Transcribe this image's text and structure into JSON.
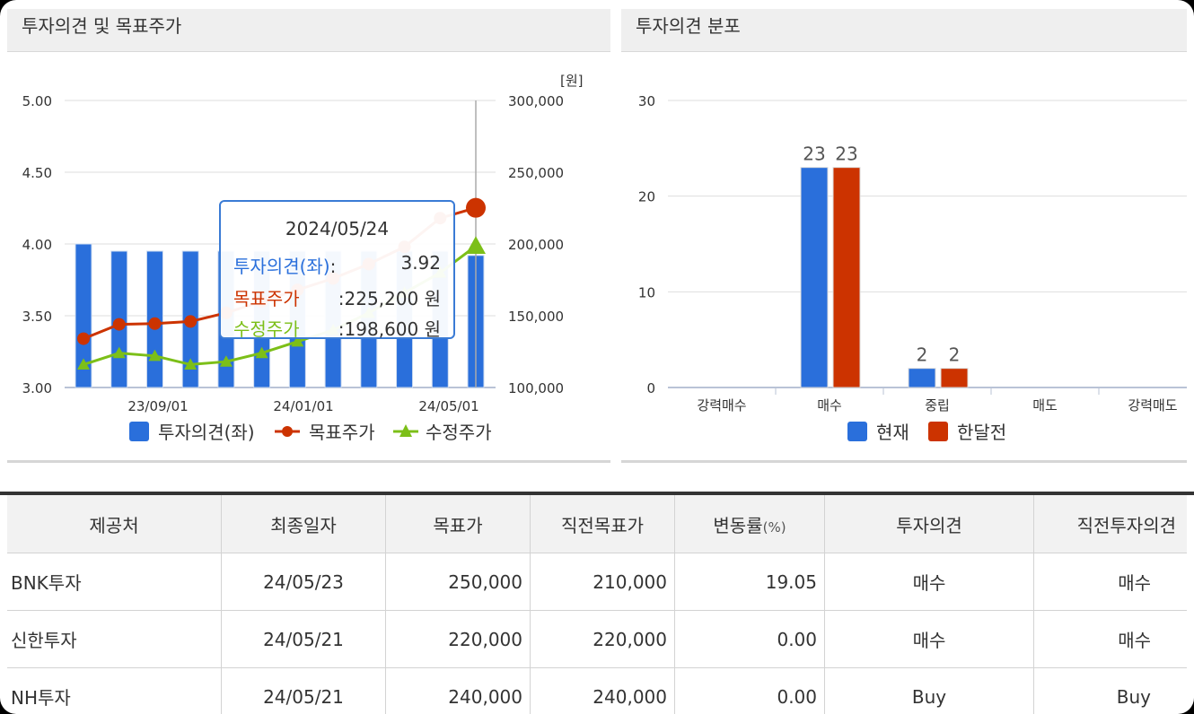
{
  "left_panel": {
    "title": "투자의견 및 목표주가",
    "unit_label": "[원]"
  },
  "right_panel": {
    "title": "투자의견 분포"
  },
  "tooltip": {
    "date": "2024/05/24",
    "rows": [
      {
        "label": "투자의견(좌)",
        "colon": ":",
        "value": "3.92",
        "color": "#2a6fdb"
      },
      {
        "label": "목표주가",
        "colon": ":",
        "value": "225,200 원",
        "color": "#cc3300"
      },
      {
        "label": "수정주가",
        "colon": ":",
        "value": "198,600 원",
        "color": "#7cbf18"
      }
    ]
  },
  "chart_data": [
    {
      "type": "bar+line",
      "title": "투자의견 및 목표주가",
      "x_tick_labels": [
        "23/09/01",
        "24/01/01",
        "24/05/01"
      ],
      "y_left": {
        "ticks": [
          "3.00",
          "3.50",
          "4.00",
          "4.50",
          "5.00"
        ],
        "lim": [
          3.0,
          5.0
        ]
      },
      "y_right": {
        "ticks": [
          "100,000",
          "150,000",
          "200,000",
          "250,000",
          "300,000"
        ],
        "lim": [
          100000,
          300000
        ],
        "unit": "[원]"
      },
      "series": [
        {
          "name": "투자의견(좌)",
          "kind": "bar",
          "axis": "left",
          "color": "#2a6fdb",
          "values": [
            4.0,
            3.95,
            3.95,
            3.95,
            3.95,
            3.95,
            3.95,
            3.95,
            3.95,
            3.95,
            3.95,
            3.92
          ]
        },
        {
          "name": "목표주가",
          "kind": "line",
          "axis": "right",
          "color": "#cc3300",
          "values": [
            134000,
            144000,
            144500,
            146000,
            152000,
            160000,
            168000,
            176000,
            186000,
            198000,
            218000,
            225200
          ]
        },
        {
          "name": "수정주가",
          "kind": "line",
          "axis": "right",
          "color": "#7cbf18",
          "values": [
            116000,
            124000,
            122000,
            116000,
            118000,
            124000,
            132000,
            140000,
            152000,
            166000,
            180000,
            198600
          ]
        }
      ],
      "legend": [
        "투자의견(좌)",
        "목표주가",
        "수정주가"
      ],
      "legend_position": "bottom"
    },
    {
      "type": "bar",
      "title": "투자의견 분포",
      "categories": [
        "강력매수",
        "매수",
        "중립",
        "매도",
        "강력매도"
      ],
      "ylim": [
        0,
        30
      ],
      "y_ticks": [
        "0",
        "10",
        "20",
        "30"
      ],
      "series": [
        {
          "name": "현재",
          "color": "#2a6fdb",
          "values": [
            0,
            23,
            2,
            0,
            0
          ]
        },
        {
          "name": "한달전",
          "color": "#cc3300",
          "values": [
            0,
            23,
            2,
            0,
            0
          ]
        }
      ],
      "legend_position": "bottom"
    }
  ],
  "table": {
    "headers": [
      "제공처",
      "최종일자",
      "목표가",
      "직전목표가",
      "변동률",
      "투자의견",
      "직전투자의견"
    ],
    "header_suffix": "(%)",
    "rows": [
      [
        "BNK투자",
        "24/05/23",
        "250,000",
        "210,000",
        "19.05",
        "매수",
        "매수"
      ],
      [
        "신한투자",
        "24/05/21",
        "220,000",
        "220,000",
        "0.00",
        "매수",
        "매수"
      ],
      [
        "NH투자",
        "24/05/21",
        "240,000",
        "240,000",
        "0.00",
        "Buy",
        "Buy"
      ]
    ]
  }
}
